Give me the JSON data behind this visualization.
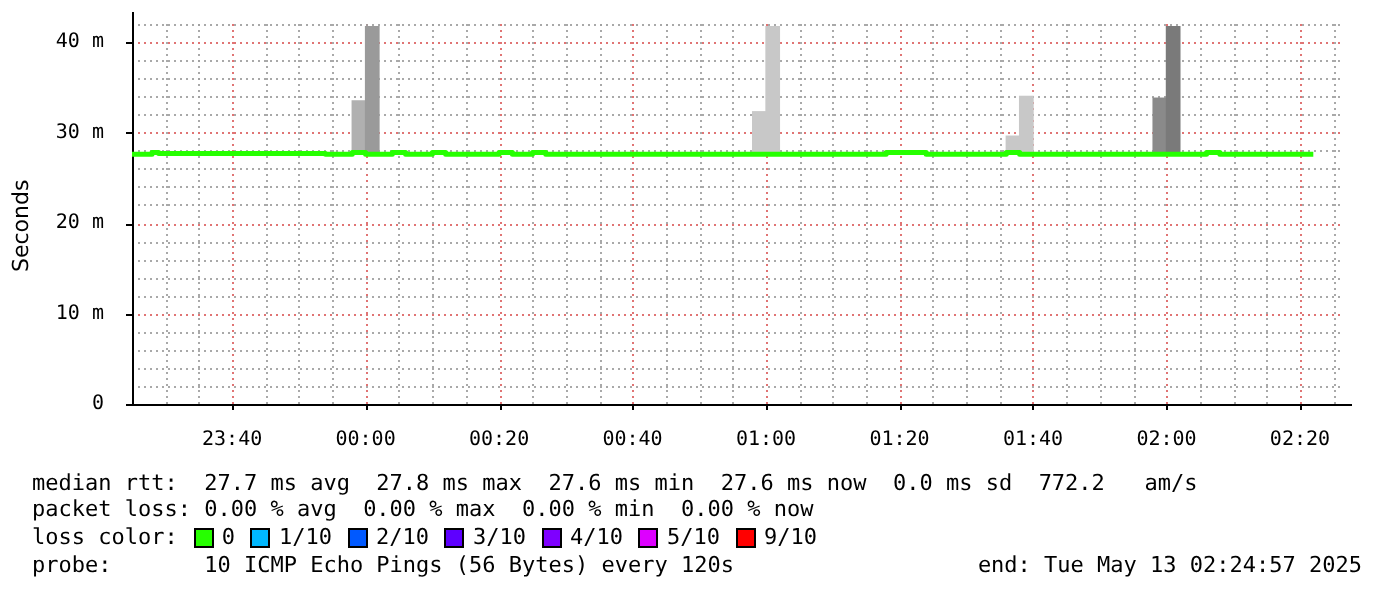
{
  "chart_data": {
    "type": "step",
    "ylabel": "Seconds",
    "legend_title": "loss color:",
    "legend": "bottom",
    "grid": true,
    "xlim": [
      "2025-05-12T23:25",
      "2025-05-13T02:26"
    ],
    "xticks": [
      {
        "value": "2025-05-12T23:40",
        "label": "23:40"
      },
      {
        "value": "2025-05-13T00:00",
        "label": "00:00"
      },
      {
        "value": "2025-05-13T00:20",
        "label": "00:20"
      },
      {
        "value": "2025-05-13T00:40",
        "label": "00:40"
      },
      {
        "value": "2025-05-13T01:00",
        "label": "01:00"
      },
      {
        "value": "2025-05-13T01:20",
        "label": "01:20"
      },
      {
        "value": "2025-05-13T01:40",
        "label": "01:40"
      },
      {
        "value": "2025-05-13T02:00",
        "label": "02:00"
      },
      {
        "value": "2025-05-13T02:20",
        "label": "02:20"
      }
    ],
    "ylim": [
      0,
      42
    ],
    "yticks": [
      0,
      {
        "value": 10,
        "label": "10 m"
      },
      {
        "value": 20,
        "label": "20 m"
      },
      {
        "value": 30,
        "label": "30 m"
      },
      {
        "value": 40,
        "label": "40 m"
      }
    ],
    "series": [
      {
        "type": "bar",
        "x": [
          "2025-05-12T23:59",
          "2025-05-13T00:01",
          "2025-05-13T00:59",
          "2025-05-13T01:01",
          "2025-05-13T01:37",
          "2025-05-13T01:39",
          "2025-05-13T01:59",
          "2025-05-13T02:01"
        ],
        "base": [
          27.7,
          27.7,
          27.7,
          27.7,
          27.7,
          27.7,
          27.7,
          27.7
        ],
        "values": [
          5.8,
          14,
          4.6,
          14,
          1.9,
          6.3,
          6.1,
          14
        ],
        "colors": [
          "#b0b0b0",
          "#9a9a9a",
          "#c8c8c8",
          "#c8c8c8",
          "#c8c8c8",
          "#c8c8c8",
          "#8a8a8a",
          "#7a7a7a"
        ]
      },
      {
        "name": "0",
        "color": "#26ff00",
        "x": [
          "2025-05-12T23:25",
          "2025-05-12T23:28",
          "2025-05-12T23:29",
          "2025-05-12T23:54",
          "2025-05-12T23:58",
          "2025-05-13T00:00",
          "2025-05-13T00:04",
          "2025-05-13T00:06",
          "2025-05-13T00:10",
          "2025-05-13T00:12",
          "2025-05-13T00:20",
          "2025-05-13T00:22",
          "2025-05-13T00:25",
          "2025-05-13T00:27",
          "2025-05-13T01:18",
          "2025-05-13T01:24",
          "2025-05-13T01:36",
          "2025-05-13T01:38",
          "2025-05-13T02:06",
          "2025-05-13T02:08",
          "2025-05-13T02:20",
          "2025-05-13T02:22"
        ],
        "values": [
          27.7,
          27.6,
          27.8,
          27.7,
          27.6,
          27.8,
          27.6,
          27.8,
          27.6,
          27.8,
          27.6,
          27.8,
          27.6,
          27.8,
          27.6,
          27.8,
          27.6,
          27.8,
          27.6,
          27.8,
          27.6,
          27.6
        ]
      },
      {
        "name": "1/10",
        "color": "#00b8ff",
        "values": [
          null
        ]
      },
      {
        "name": "2/10",
        "color": "#0059ff",
        "values": [
          null
        ]
      },
      {
        "name": "3/10",
        "color": "#5e00ff",
        "values": [
          null
        ]
      },
      {
        "name": "4/10",
        "color": "#7e00ff",
        "values": [
          null
        ]
      },
      {
        "name": "5/10",
        "color": "#dd00ff",
        "values": [
          null
        ]
      },
      {
        "name": "9/10",
        "color": "#ff0000",
        "values": [
          null
        ]
      }
    ],
    "annotations": [
      "median rtt:  27.7 ms avg  27.8 ms max  27.6 ms min  27.6 ms now  0.0 ms sd  772.2   am/s",
      "packet loss: 0.00 % avg  0.00 % max  0.00 % min  0.00 % now",
      "probe:       10 ICMP Echo Pings (56 Bytes) every 120s",
      "end: Tue May 13 02:24:57 2025"
    ]
  }
}
